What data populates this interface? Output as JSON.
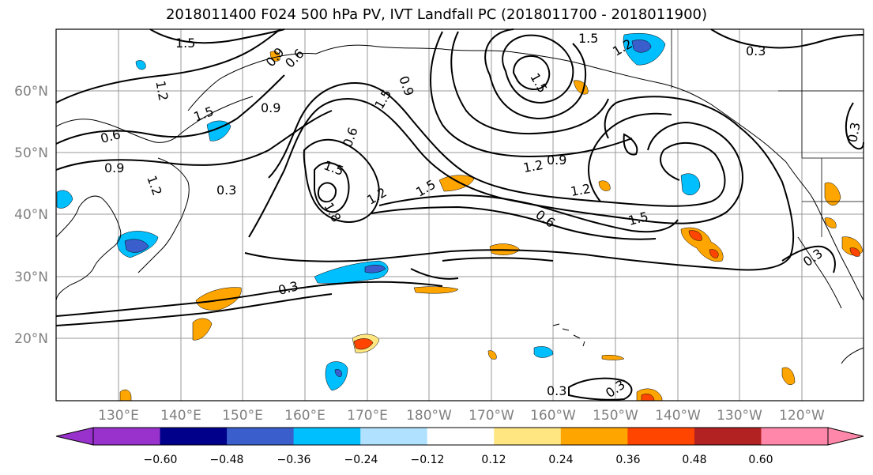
{
  "title": "2018011400 F024 500 hPa PV, IVT Landfall PC (2018011700 - 2018011900)",
  "lat_labels": [
    "60°N",
    "50°N",
    "40°N",
    "30°N",
    "20°N"
  ],
  "lon_labels": [
    "130°E",
    "140°E",
    "150°E",
    "160°E",
    "170°E",
    "180°W",
    "170°W",
    "160°W",
    "150°W",
    "140°W",
    "130°W",
    "120°W"
  ],
  "contour_labels": [
    "1.5",
    "0.6",
    "0.9",
    "1.2",
    "1.5",
    "0.6",
    "0.9",
    "1.2",
    "0.3",
    "0.6",
    "1.5",
    "1.8",
    "1.2",
    "1.5",
    "1.5",
    "0.9",
    "1.5",
    "1.5",
    "0.3",
    "1.2",
    "0.9",
    "1.2",
    "1.2",
    "1.5",
    "0.6",
    "0.3",
    "0.3",
    "0.3",
    "0.3",
    "0.3",
    "0.9"
  ],
  "colorbar": {
    "ticks": [
      "−0.60",
      "−0.48",
      "−0.36",
      "−0.24",
      "−0.12",
      "0.12",
      "0.24",
      "0.36",
      "0.48",
      "0.60"
    ],
    "colors": [
      "#9932cc",
      "#00008b",
      "#3a5fcd",
      "#00bfff",
      "#b0e2ff",
      "#ffffff",
      "#ffe680",
      "#ffa500",
      "#ff4500",
      "#b22222",
      "#ff88aa"
    ]
  }
}
